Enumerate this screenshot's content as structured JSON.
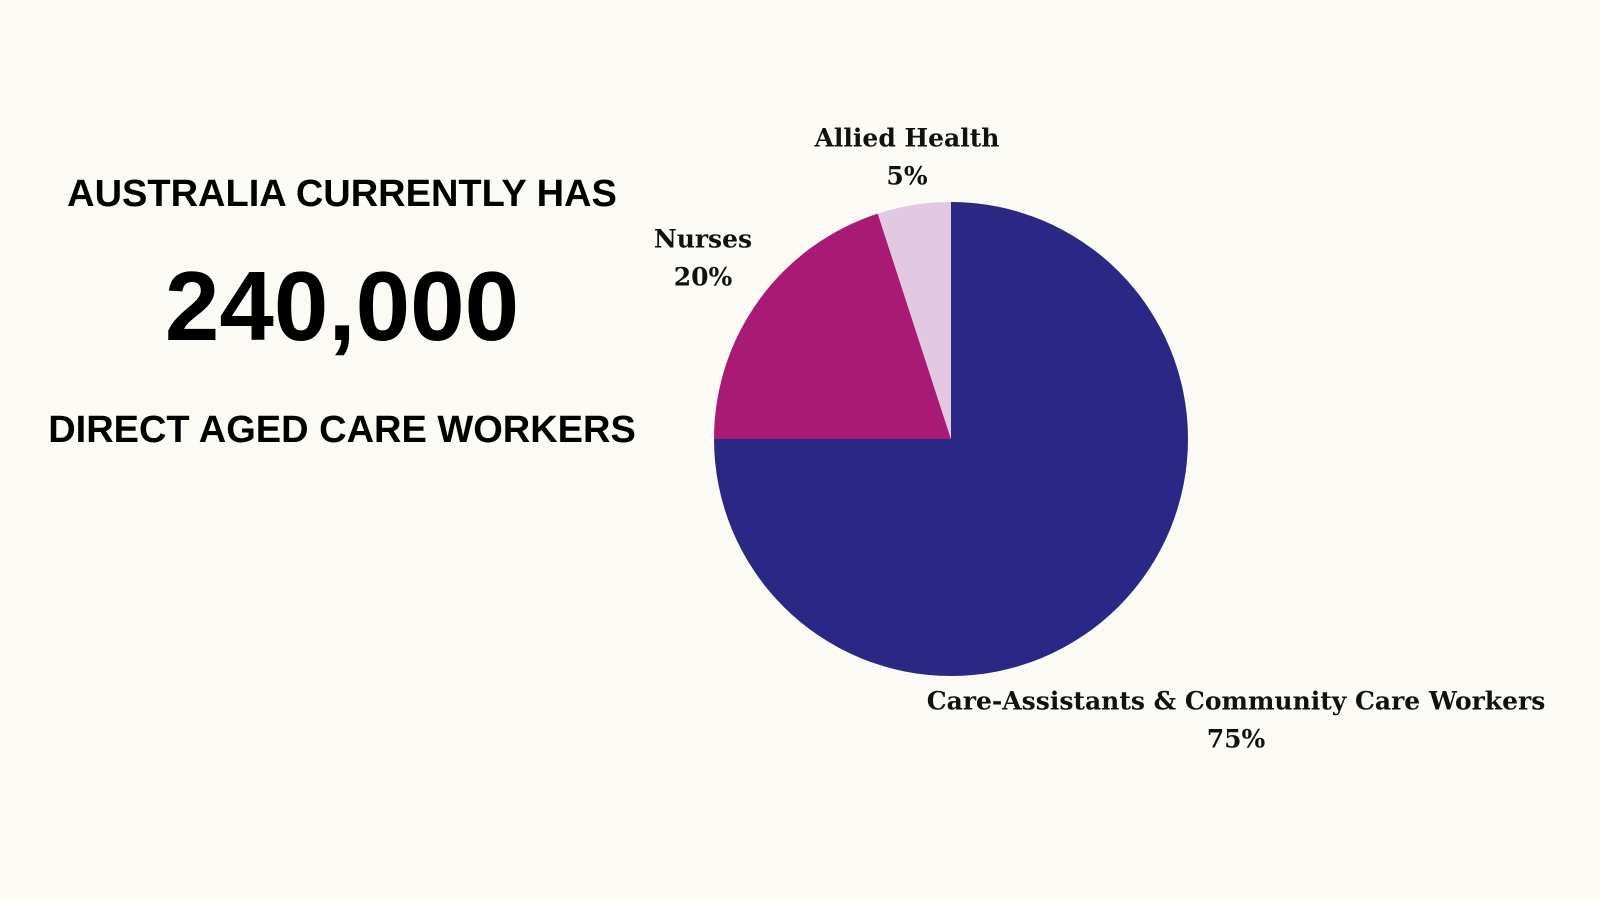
{
  "headline": {
    "top": "AUSTRALIA CURRENTLY HAS",
    "number": "240,000",
    "bottom": "DIRECT AGED CARE WORKERS"
  },
  "chart_data": {
    "type": "pie",
    "categories": [
      "Care-Assistants & Community Care Workers",
      "Nurses",
      "Allied Health"
    ],
    "values": [
      75,
      20,
      5
    ],
    "value_labels": [
      "75%",
      "20%",
      "5%"
    ],
    "colors": [
      "#2a2785",
      "#a91a74",
      "#e3c8e3"
    ]
  }
}
